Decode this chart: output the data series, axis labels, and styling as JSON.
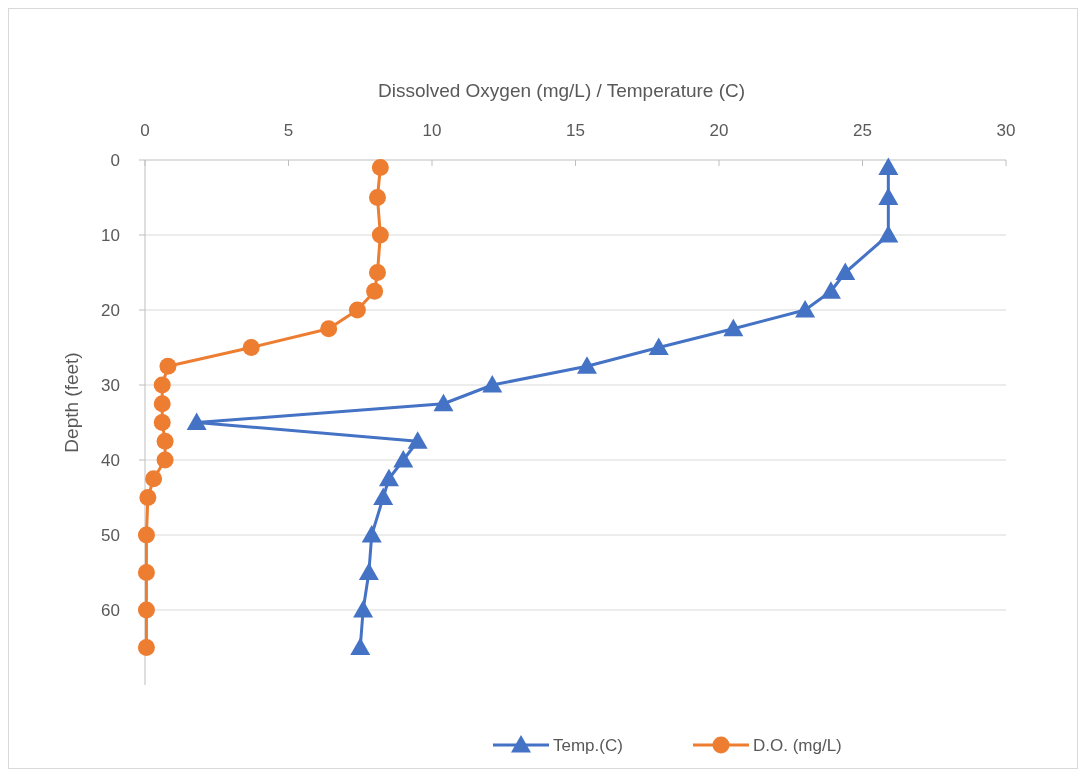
{
  "chart_data": {
    "type": "line",
    "xlabel": "Dissolved Oxygen (mg/L) / Temperature (C)",
    "ylabel": "Depth (feet)",
    "xlim": [
      0,
      30
    ],
    "xticks": [
      0,
      5,
      10,
      15,
      20,
      25,
      30
    ],
    "ylim": [
      70,
      0
    ],
    "yticks": [
      0,
      10,
      20,
      30,
      40,
      50,
      60
    ],
    "grid": "y",
    "legend": "bottom",
    "series": [
      {
        "name": "Temp.(C)",
        "color": "#4472c4",
        "marker": "triangle",
        "x": [
          25.9,
          25.9,
          25.9,
          24.4,
          23.9,
          23.0,
          20.5,
          17.9,
          15.4,
          12.1,
          10.4,
          1.8,
          9.5,
          9.0,
          8.5,
          8.3,
          7.9,
          7.8,
          7.6,
          7.5
        ],
        "values": [
          1,
          5,
          10,
          15,
          17.5,
          20,
          22.5,
          25,
          27.5,
          30,
          32.5,
          35,
          37.5,
          40,
          42.5,
          45,
          50,
          55,
          60,
          65
        ]
      },
      {
        "name": "D.O. (mg/L)",
        "color": "#ed7d31",
        "marker": "circle",
        "x": [
          8.2,
          8.1,
          8.2,
          8.1,
          8.0,
          7.4,
          6.4,
          3.7,
          0.8,
          0.6,
          0.6,
          0.6,
          0.7,
          0.7,
          0.3,
          0.1,
          0.05,
          0.05,
          0.05,
          0.05
        ],
        "values": [
          1,
          5,
          10,
          15,
          17.5,
          20,
          22.5,
          25,
          27.5,
          30,
          32.5,
          35,
          37.5,
          40,
          42.5,
          45,
          50,
          55,
          60,
          65
        ]
      }
    ]
  }
}
